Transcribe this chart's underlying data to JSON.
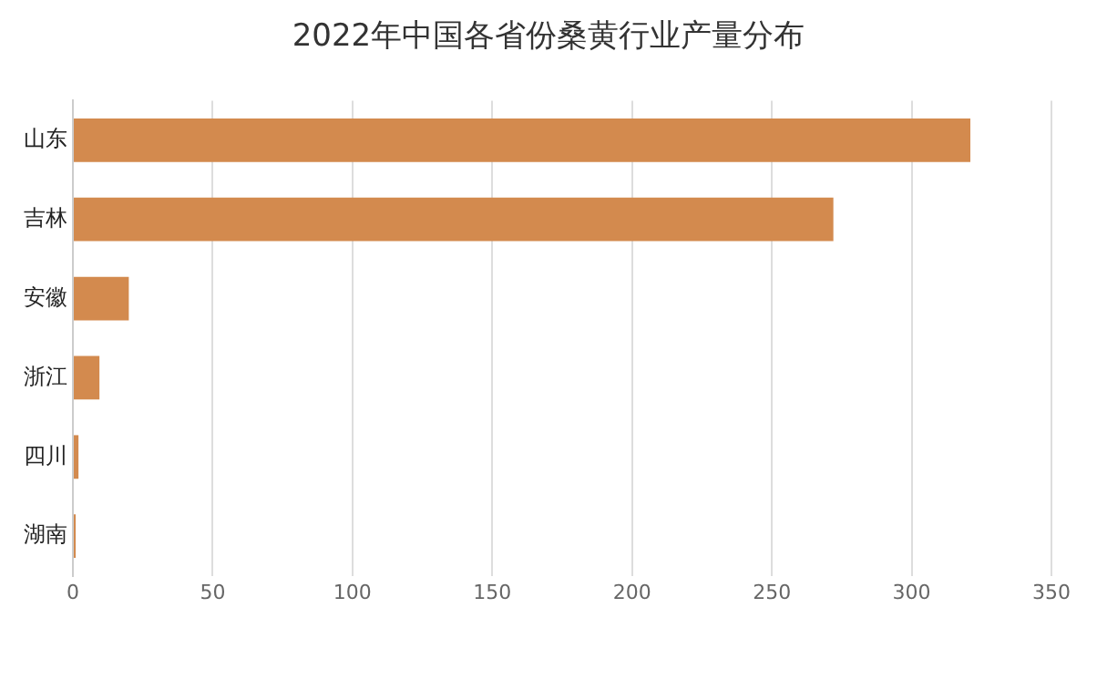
{
  "chart_data": {
    "type": "bar",
    "orientation": "horizontal",
    "title": "2022年中国各省份桑黄行业产量分布",
    "categories": [
      "山东",
      "吉林",
      "安徽",
      "浙江",
      "四川",
      "湖南"
    ],
    "values": [
      321,
      272,
      20,
      9.5,
      2,
      1
    ],
    "color": "#d38a4e",
    "xlim": [
      0,
      350
    ],
    "xticks": [
      0,
      50,
      100,
      150,
      200,
      250,
      300,
      350
    ],
    "grid": "x"
  }
}
